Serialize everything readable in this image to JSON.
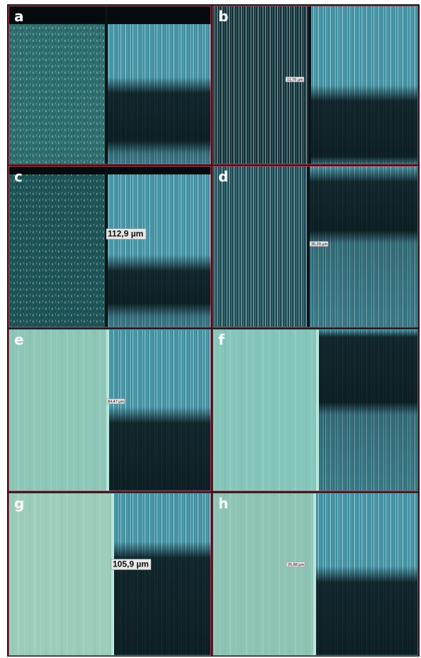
{
  "panels": [
    {
      "letter": "a"
    },
    {
      "letter": "b",
      "measurement": "11,76 µm"
    },
    {
      "letter": "c",
      "measurement": "112,9 µm"
    },
    {
      "letter": "d",
      "measurement": "35,29 µm"
    },
    {
      "letter": "e",
      "measurement": "84,47 µm"
    },
    {
      "letter": "f"
    },
    {
      "letter": "g",
      "measurement": "105,9 µm"
    },
    {
      "letter": "h",
      "measurement": "25,88 µm"
    }
  ]
}
